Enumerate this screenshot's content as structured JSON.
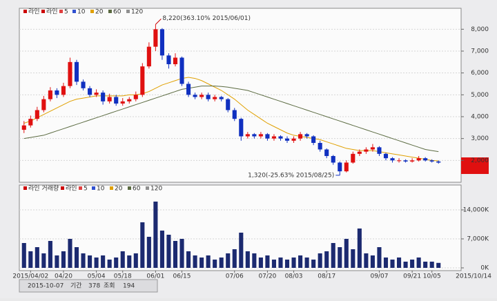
{
  "chart_data": [
    {
      "type": "candlestick",
      "legend": [
        "라인",
        "라인",
        "5",
        "10",
        "20",
        "60",
        "120"
      ],
      "legend_colors": [
        "#cc0000",
        "#cc0000",
        "#e04040",
        "#3050d0",
        "#e0a000",
        "#5a6a40",
        "#909090"
      ],
      "open": [
        3400,
        3600,
        3900,
        4300,
        4800,
        5200,
        5000,
        5400,
        6500,
        5600,
        5300,
        5000,
        5100,
        4700,
        4900,
        4600,
        4700,
        4800,
        5000,
        6300,
        7200,
        8000,
        6800,
        6400,
        6700,
        5500,
        5000,
        4900,
        5000,
        4800,
        4900,
        4800,
        4300,
        3900,
        3100,
        3200,
        3100,
        3200,
        3000,
        3100,
        3000,
        2900,
        3000,
        3200,
        3100,
        2800,
        2500,
        2200,
        1900,
        1500,
        1900,
        2300,
        2400,
        2500,
        2600,
        2300,
        2100,
        2000,
        2000,
        1950,
        2000,
        2100,
        2000,
        1950
      ],
      "high": [
        3800,
        4050,
        4450,
        4950,
        5350,
        5300,
        5550,
        6700,
        6600,
        5700,
        5400,
        5250,
        5200,
        5050,
        5000,
        4850,
        4900,
        5150,
        6450,
        7400,
        8220,
        8050,
        6900,
        6900,
        6750,
        5600,
        5100,
        5100,
        5100,
        5000,
        4950,
        4850,
        4400,
        3950,
        3300,
        3250,
        3300,
        3250,
        3200,
        3150,
        3100,
        3100,
        3300,
        3250,
        3150,
        2900,
        2550,
        2250,
        1950,
        2000,
        2400,
        2500,
        2600,
        2750,
        2650,
        2350,
        2150,
        2100,
        2050,
        2100,
        2200,
        2150,
        2050,
        2000
      ],
      "low": [
        3250,
        3500,
        3800,
        4200,
        4700,
        4850,
        4900,
        5300,
        5450,
        5200,
        4900,
        4900,
        4550,
        4600,
        4500,
        4500,
        4600,
        4700,
        4900,
        6200,
        7000,
        6600,
        6200,
        6300,
        5400,
        4900,
        4800,
        4800,
        4700,
        4700,
        4700,
        4200,
        3800,
        2900,
        3000,
        3000,
        3000,
        2900,
        2900,
        2900,
        2800,
        2800,
        2900,
        3000,
        2700,
        2400,
        2100,
        1800,
        1320,
        1450,
        1850,
        2200,
        2300,
        2400,
        2200,
        2000,
        1900,
        1900,
        1900,
        1900,
        1950,
        1950,
        1900,
        1850
      ],
      "close": [
        3600,
        3900,
        4300,
        4800,
        5200,
        5000,
        5400,
        6500,
        5600,
        5300,
        5000,
        5100,
        4700,
        4900,
        4600,
        4700,
        4800,
        5000,
        6300,
        7200,
        8000,
        6800,
        6400,
        6700,
        5500,
        5000,
        4900,
        5000,
        4800,
        4900,
        4800,
        4300,
        3900,
        3100,
        3200,
        3100,
        3200,
        3000,
        3100,
        3000,
        2900,
        3000,
        3200,
        3100,
        2800,
        2500,
        2200,
        1900,
        1500,
        1900,
        2300,
        2400,
        2500,
        2600,
        2300,
        2100,
        2000,
        2000,
        1950,
        2000,
        2100,
        2000,
        1950,
        1900
      ],
      "series": [
        {
          "name": "20",
          "color": "#e0a000",
          "values": [
            3700,
            3800,
            3950,
            4100,
            4250,
            4400,
            4550,
            4700,
            4800,
            4850,
            4900,
            4950,
            4950,
            4950,
            4950,
            4950,
            5000,
            5000,
            5050,
            5150,
            5300,
            5450,
            5550,
            5650,
            5750,
            5800,
            5750,
            5650,
            5500,
            5350,
            5200,
            5000,
            4800,
            4550,
            4300,
            4100,
            3900,
            3700,
            3550,
            3400,
            3250,
            3150,
            3100,
            3050,
            3000,
            2950,
            2850,
            2750,
            2650,
            2550,
            2500,
            2450,
            2450,
            2450,
            2400,
            2350,
            2300,
            2250,
            2200,
            2150,
            2100,
            2050,
            2000,
            1980
          ]
        },
        {
          "name": "60",
          "color": "#5a6a40",
          "values": [
            3000,
            3050,
            3100,
            3150,
            3250,
            3350,
            3450,
            3550,
            3650,
            3750,
            3850,
            3950,
            4050,
            4150,
            4250,
            4350,
            4450,
            4550,
            4650,
            4750,
            4850,
            4950,
            5050,
            5150,
            5250,
            5300,
            5350,
            5400,
            5400,
            5400,
            5380,
            5350,
            5300,
            5250,
            5200,
            5100,
            5000,
            4900,
            4800,
            4700,
            4600,
            4500,
            4400,
            4300,
            4200,
            4100,
            4000,
            3900,
            3800,
            3700,
            3600,
            3500,
            3400,
            3300,
            3200,
            3100,
            3000,
            2900,
            2800,
            2700,
            2600,
            2500,
            2450,
            2400
          ]
        }
      ],
      "up_color": "#e01010",
      "down_color": "#1030c0",
      "max_label": "8,220(363.10% 2015/06/01)",
      "min_label": "1,320(-25.63% 2015/08/25)",
      "ylim": [
        1000,
        8800
      ],
      "yticks": [
        {
          "value": 2000,
          "label": "2,000"
        },
        {
          "value": 3000,
          "label": "3,000"
        },
        {
          "value": 4000,
          "label": "4,000"
        },
        {
          "value": 5000,
          "label": "5,000"
        },
        {
          "value": 6000,
          "label": "6,000"
        },
        {
          "value": 7000,
          "label": "7,000"
        },
        {
          "value": 8000,
          "label": "8,000"
        }
      ],
      "grid": true
    },
    {
      "type": "bar",
      "legend": [
        "라인 거래량",
        "라인",
        "5",
        "10",
        "20",
        "60",
        "120"
      ],
      "legend_colors": [
        "#cc0000",
        "#cc0000",
        "#e04040",
        "#3050d0",
        "#e0a000",
        "#5a6a40",
        "#909090"
      ],
      "categories": [
        null,
        "2015/04/02",
        null,
        null,
        null,
        null,
        "04/20",
        null,
        null,
        null,
        null,
        "05/04",
        null,
        null,
        null,
        "05/18",
        null,
        null,
        null,
        null,
        "06/01",
        null,
        null,
        null,
        "06/15",
        null,
        null,
        null,
        null,
        null,
        null,
        null,
        "07/06",
        null,
        null,
        null,
        null,
        "07/20",
        null,
        null,
        null,
        "08/03",
        null,
        null,
        null,
        null,
        "08/17",
        null,
        null,
        null,
        null,
        null,
        null,
        null,
        "09/07",
        null,
        null,
        null,
        null,
        "09/21",
        null,
        null,
        "10/05",
        null
      ],
      "values": [
        6000,
        4000,
        5000,
        3500,
        6500,
        3000,
        4000,
        7000,
        5000,
        3500,
        3000,
        2500,
        3000,
        2000,
        2500,
        4000,
        3000,
        3500,
        11000,
        7500,
        16000,
        9000,
        8000,
        6500,
        7000,
        4000,
        3000,
        2500,
        3000,
        2000,
        2500,
        3500,
        4500,
        8500,
        4000,
        3500,
        2500,
        3000,
        2000,
        2500,
        2000,
        2500,
        3000,
        2500,
        2000,
        3500,
        4000,
        6000,
        5000,
        7000,
        4500,
        9500,
        3500,
        3000,
        5000,
        2500,
        2000,
        2500,
        1500,
        2000,
        2500,
        1500,
        1500,
        1200
      ],
      "color": "#1c2a70",
      "end_label": "2015/10/14",
      "ylim": [
        0,
        20000
      ],
      "yticks": [
        {
          "value": 0,
          "label": "0K"
        },
        {
          "value": 7000,
          "label": "7,000K"
        },
        {
          "value": 14000,
          "label": "14,000K"
        }
      ],
      "grid": true
    }
  ],
  "toolbar": {
    "date": "2015-10-07",
    "period": "기간",
    "count": "378",
    "query": "조회",
    "number": "194"
  }
}
